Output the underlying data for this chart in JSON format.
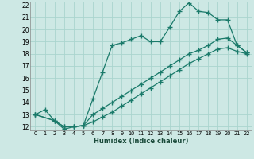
{
  "xlabel": "Humidex (Indice chaleur)",
  "bg_color": "#cde8e4",
  "grid_color": "#aad4ce",
  "line_color": "#1a7a6a",
  "xlim": [
    -0.5,
    22.5
  ],
  "ylim": [
    11.7,
    22.3
  ],
  "yticks": [
    12,
    13,
    14,
    15,
    16,
    17,
    18,
    19,
    20,
    21,
    22
  ],
  "xticks": [
    0,
    1,
    2,
    3,
    4,
    5,
    6,
    7,
    8,
    9,
    10,
    11,
    12,
    13,
    14,
    15,
    16,
    17,
    18,
    19,
    20,
    21,
    22
  ],
  "line1_x": [
    0,
    1,
    2,
    3,
    4,
    5,
    6,
    7,
    8,
    9,
    10,
    11,
    12,
    13,
    14,
    15,
    16,
    17,
    18,
    19,
    20,
    21,
    22
  ],
  "line1_y": [
    13.0,
    13.4,
    12.5,
    11.8,
    12.0,
    12.1,
    14.3,
    16.5,
    18.7,
    18.9,
    19.2,
    19.5,
    19.0,
    19.0,
    20.2,
    21.5,
    22.2,
    21.5,
    21.4,
    20.8,
    20.8,
    18.7,
    18.1
  ],
  "line2_x": [
    0,
    2,
    3,
    4,
    5,
    6,
    7,
    8,
    9,
    10,
    11,
    12,
    13,
    14,
    15,
    16,
    17,
    18,
    19,
    20,
    21,
    22
  ],
  "line2_y": [
    13.0,
    12.5,
    12.0,
    12.0,
    12.1,
    13.0,
    13.5,
    14.0,
    14.5,
    15.0,
    15.5,
    16.0,
    16.5,
    17.0,
    17.5,
    18.0,
    18.3,
    18.7,
    19.2,
    19.3,
    18.7,
    18.1
  ],
  "line3_x": [
    0,
    2,
    3,
    4,
    5,
    6,
    7,
    8,
    9,
    10,
    11,
    12,
    13,
    14,
    15,
    16,
    17,
    18,
    19,
    20,
    21,
    22
  ],
  "line3_y": [
    13.0,
    12.5,
    12.0,
    12.0,
    12.1,
    12.4,
    12.8,
    13.2,
    13.7,
    14.2,
    14.7,
    15.2,
    15.7,
    16.2,
    16.7,
    17.2,
    17.6,
    18.0,
    18.4,
    18.5,
    18.2,
    18.0
  ]
}
